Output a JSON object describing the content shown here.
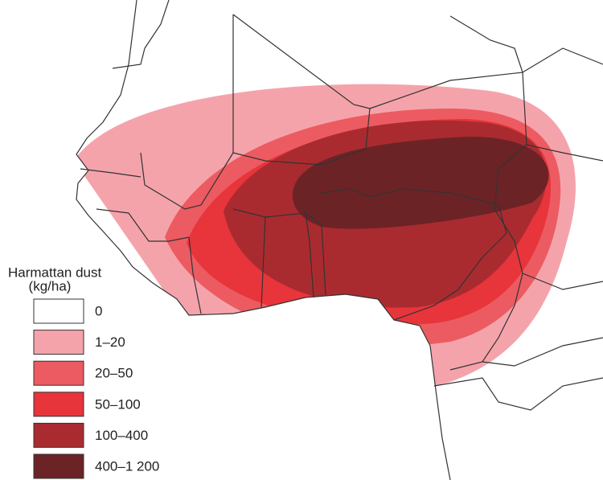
{
  "legend": {
    "title": "Harmattan dust",
    "unit": "(kg/ha)",
    "items": [
      {
        "label": "0",
        "color": "#ffffff"
      },
      {
        "label": "1–20",
        "color": "#f5a3ab"
      },
      {
        "label": "20–50",
        "color": "#ec5b61"
      },
      {
        "label": "50–100",
        "color": "#e8343b"
      },
      {
        "label": "100–400",
        "color": "#a92b30"
      },
      {
        "label": "400–1 200",
        "color": "#6c2326"
      }
    ]
  }
}
